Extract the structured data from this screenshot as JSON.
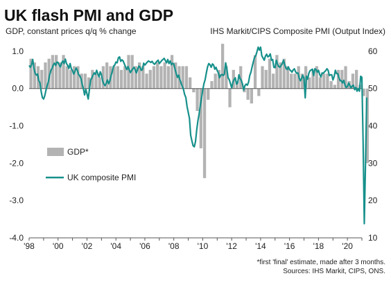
{
  "chart_data": {
    "type": "bar+line",
    "title": "UK flash PMI and GDP",
    "left_axis_title": "GDP, constant prices q/q % change",
    "right_axis_title": "IHS Markit/CIPS Composite PMI (Output Index)",
    "left_axis": {
      "min": -4.0,
      "max": 1.5,
      "ticks": [
        "1.0",
        "0.0",
        "-1.0",
        "-2.0",
        "-3.0",
        "-4.0"
      ],
      "tick_values": [
        1.0,
        0.0,
        -1.0,
        -2.0,
        -3.0,
        -4.0
      ]
    },
    "right_axis": {
      "min": 10,
      "max": 65,
      "ticks": [
        "60",
        "50",
        "40",
        "30",
        "20",
        "10"
      ],
      "tick_values": [
        60,
        50,
        40,
        30,
        20,
        10
      ]
    },
    "x_axis": {
      "min": 1998,
      "max": 2021,
      "ticks": [
        "'98",
        "'00",
        "'02",
        "'04",
        "'06",
        "'08",
        "'10",
        "'12",
        "'14",
        "'16",
        "'18",
        "'20"
      ],
      "tick_values": [
        1998,
        2000,
        2002,
        2004,
        2006,
        2008,
        2010,
        2012,
        2014,
        2016,
        2018,
        2020
      ]
    },
    "legend": [
      {
        "name": "GDP*",
        "color": "#b3b3b3",
        "kind": "bar"
      },
      {
        "name": "UK composite PMI",
        "color": "#16908b",
        "kind": "line"
      }
    ],
    "gdp_quarterly": {
      "start_year": 1998,
      "values": [
        0.8,
        0.7,
        0.6,
        0.5,
        0.7,
        0.8,
        0.9,
        0.9,
        0.7,
        0.9,
        0.6,
        0.5,
        0.6,
        0.6,
        0.4,
        0.4,
        0.3,
        0.5,
        0.4,
        0.3,
        0.6,
        0.7,
        0.6,
        0.6,
        0.6,
        0.5,
        0.6,
        0.9,
        0.9,
        0.6,
        0.7,
        0.6,
        0.4,
        0.5,
        0.6,
        0.7,
        0.6,
        0.7,
        0.6,
        0.9,
        0.7,
        0.6,
        0.6,
        0.6,
        0.3,
        -0.1,
        -0.6,
        -1.6,
        -2.4,
        -0.3,
        0.2,
        0.4,
        0.5,
        1.2,
        0.6,
        -0.5,
        0.5,
        0.2,
        0.6,
        -0.1,
        -0.3,
        -0.4,
        0.9,
        -0.2,
        0.6,
        0.5,
        0.8,
        0.4,
        0.9,
        0.7,
        0.8,
        0.6,
        0.4,
        0.4,
        0.6,
        0.4,
        0.6,
        0.3,
        0.5,
        0.6,
        0.3,
        0.4,
        0.4,
        0.2,
        0.1,
        0.5,
        0.5,
        0.6,
        0.2,
        0.4,
        0.5,
        0.1,
        -0.2,
        -2.0
      ],
      "x_offset_years": 0.0
    },
    "pmi_monthly": {
      "start_year": 1998,
      "values": [
        56.2,
        55.7,
        56.4,
        57.8,
        55.4,
        54.1,
        53.6,
        53.9,
        52.2,
        51.5,
        49.2,
        47.6,
        47.2,
        48.1,
        49.6,
        50.8,
        51.9,
        53.6,
        54.8,
        55.4,
        56.3,
        56.8,
        56.2,
        57.1,
        57.0,
        56.3,
        55.8,
        56.9,
        57.4,
        56.7,
        57.9,
        56.7,
        56.2,
        55.4,
        56.7,
        55.3,
        54.8,
        53.9,
        54.6,
        55.5,
        54.9,
        53.8,
        53.4,
        52.7,
        51.2,
        50.0,
        48.3,
        49.8,
        48.6,
        47.2,
        49.7,
        52.3,
        52.8,
        53.6,
        54.2,
        53.8,
        54.9,
        54.0,
        53.1,
        54.5,
        53.7,
        52.0,
        51.2,
        50.8,
        51.5,
        52.3,
        51.3,
        52.1,
        53.5,
        54.6,
        56.0,
        56.3,
        57.1,
        56.9,
        58.2,
        58.5,
        57.3,
        57.7,
        57.4,
        56.6,
        55.8,
        55.1,
        55.9,
        55.1,
        54.3,
        54.8,
        55.3,
        55.7,
        55.0,
        54.2,
        55.2,
        56.0,
        55.8,
        54.9,
        55.1,
        56.8,
        56.3,
        56.7,
        57.1,
        57.4,
        57.2,
        57.0,
        57.3,
        56.8,
        56.5,
        56.9,
        57.3,
        57.6,
        56.7,
        57.1,
        57.5,
        57.8,
        58.1,
        57.5,
        56.9,
        57.8,
        56.7,
        57.4,
        56.4,
        56.8,
        56.6,
        55.2,
        54.1,
        53.0,
        53.6,
        52.4,
        51.5,
        50.6,
        49.8,
        48.4,
        47.6,
        45.2,
        43.6,
        42.0,
        37.5,
        36.0,
        34.7,
        34.4,
        35.8,
        38.9,
        41.4,
        43.2,
        45.5,
        47.5,
        49.6,
        51.3,
        52.4,
        54.2,
        55.8,
        56.7,
        56.4,
        55.7,
        56.6,
        56.3,
        55.2,
        55.7,
        54.8,
        54.2,
        52.9,
        53.6,
        53.8,
        53.5,
        53.9,
        56.9,
        55.3,
        52.9,
        52.4,
        51.3,
        50.2,
        51.7,
        52.4,
        52.9,
        51.2,
        51.5,
        53.7,
        52.7,
        52.2,
        51.2,
        49.6,
        50.8,
        51.2,
        50.9,
        51.7,
        53.5,
        54.4,
        55.9,
        57.2,
        58.4,
        58.8,
        59.9,
        61.1,
        60.3,
        61.1,
        58.8,
        58.2,
        57.6,
        58.7,
        59.2,
        58.5,
        58.7,
        59.3,
        57.6,
        57.8,
        55.7,
        55.6,
        57.6,
        56.6,
        55.9,
        55.7,
        56.2,
        56.7,
        57.6,
        56.4,
        55.5,
        55.1,
        55.8,
        55.1,
        54.8,
        54.4,
        55.0,
        55.3,
        54.5,
        54.1,
        54.2,
        52.8,
        52.1,
        52.7,
        53.6,
        52.7,
        47.5,
        53.3,
        52.5,
        54.1,
        54.8,
        55.0,
        55.2,
        53.5,
        55.3,
        55.1,
        54.4,
        54.9,
        53.8,
        53.1,
        54.2,
        54.1,
        54.5,
        54.8,
        55.3,
        54.9,
        53.5,
        53.7,
        53.7,
        52.3,
        53.2,
        54.9,
        54.0,
        54.0,
        52.9,
        52.1,
        52.1,
        51.5,
        52.2,
        50.9,
        50.3,
        50.5,
        51.5,
        50.9,
        50.2,
        50.7,
        50.9,
        49.7,
        50.3,
        49.3,
        50.0,
        49.3,
        53.3,
        53.0,
        36.0,
        13.8,
        30.0,
        47.6
      ]
    },
    "notes": [
      "*first 'final' estimate, made after 3 months.",
      "Sources: IHS Markit, CIPS, ONS."
    ]
  }
}
